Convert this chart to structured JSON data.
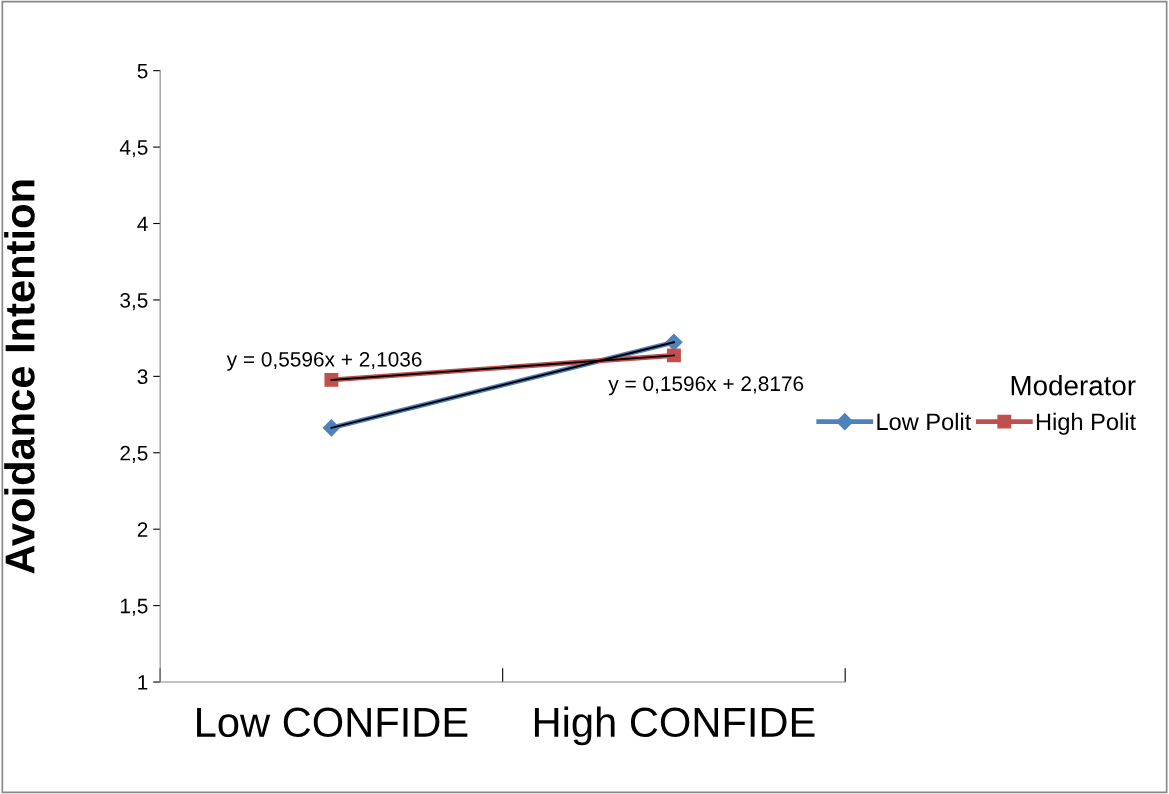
{
  "chart_data": {
    "type": "line",
    "ylabel": "Avoidance Intention",
    "legend_title": "Moderator",
    "legend": "right",
    "grid": false,
    "categories": [
      "Low CONFIDE",
      "High CONFIDE"
    ],
    "series": [
      {
        "name": "Low Polit",
        "color": "#4f81bd",
        "values": [
          2.663,
          3.223
        ],
        "marker": "diamond"
      },
      {
        "name": "High Polit",
        "color": "#c0504d",
        "values": [
          2.977,
          3.137
        ],
        "marker": "square"
      },
      {
        "type": "line",
        "color": "#000000",
        "values": [
          2.663,
          3.223
        ],
        "marker": "none"
      },
      {
        "type": "line",
        "color": "#000000",
        "values": [
          2.977,
          3.137
        ],
        "marker": "none"
      }
    ],
    "ylim": [
      1,
      5
    ],
    "yticks": [
      1,
      {
        "value": 1.5,
        "label": "1,5"
      },
      2,
      {
        "value": 2.5,
        "label": "2,5"
      },
      3,
      {
        "value": 3.5,
        "label": "3,5"
      },
      4,
      {
        "value": 4.5,
        "label": "4,5"
      },
      5
    ],
    "annotations": [
      "y = 0,5596x + 2,1036",
      "y = 0,1596x + 2,8176"
    ]
  }
}
